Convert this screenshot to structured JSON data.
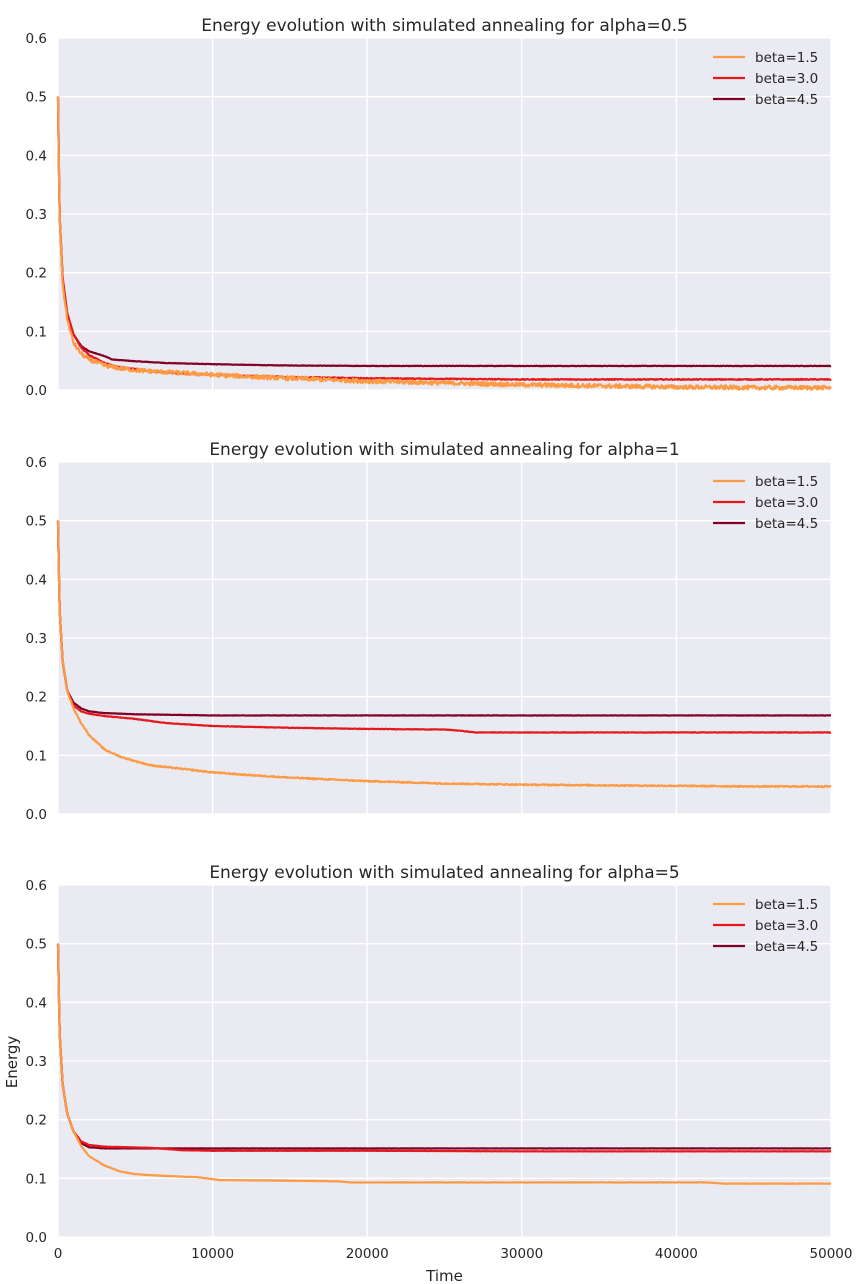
{
  "figure": {
    "xlabel": "Time",
    "ylabel": "Energy"
  },
  "chart_data": [
    {
      "type": "line",
      "title": "Energy evolution with simulated annealing for alpha=0.5",
      "xlabel": "",
      "ylabel": "",
      "xlim": [
        0,
        50000
      ],
      "ylim": [
        0.0,
        0.6
      ],
      "yticks": [
        "0.0",
        "0.1",
        "0.2",
        "0.3",
        "0.4",
        "0.5",
        "0.6"
      ],
      "xticks": [
        "0",
        "10000",
        "20000",
        "30000",
        "40000",
        "50000"
      ],
      "show_xtick_labels": false,
      "grid": true,
      "legend": "top-right",
      "series": [
        {
          "name": "beta=1.5",
          "color": "#fd9a44",
          "noise": 0.0035,
          "points": [
            [
              0,
              0.5
            ],
            [
              100,
              0.3
            ],
            [
              300,
              0.18
            ],
            [
              600,
              0.12
            ],
            [
              1000,
              0.08
            ],
            [
              1500,
              0.062
            ],
            [
              2000,
              0.052
            ],
            [
              3000,
              0.042
            ],
            [
              4000,
              0.037
            ],
            [
              5000,
              0.034
            ],
            [
              6000,
              0.032
            ],
            [
              8000,
              0.029
            ],
            [
              10000,
              0.026
            ],
            [
              13000,
              0.022
            ],
            [
              16000,
              0.019
            ],
            [
              20000,
              0.015
            ],
            [
              25000,
              0.012
            ],
            [
              30000,
              0.009
            ],
            [
              35000,
              0.007
            ],
            [
              40000,
              0.005
            ],
            [
              45000,
              0.004
            ],
            [
              50000,
              0.004
            ]
          ]
        },
        {
          "name": "beta=3.0",
          "color": "#e31a1c",
          "noise": 0.0008,
          "points": [
            [
              0,
              0.5
            ],
            [
              100,
              0.3
            ],
            [
              300,
              0.19
            ],
            [
              600,
              0.13
            ],
            [
              1000,
              0.095
            ],
            [
              1500,
              0.072
            ],
            [
              2000,
              0.06
            ],
            [
              3000,
              0.046
            ],
            [
              4000,
              0.039
            ],
            [
              6000,
              0.032
            ],
            [
              8000,
              0.028
            ],
            [
              10000,
              0.026
            ],
            [
              15000,
              0.022
            ],
            [
              20000,
              0.02
            ],
            [
              25000,
              0.019
            ],
            [
              30000,
              0.018
            ],
            [
              50000,
              0.018
            ]
          ]
        },
        {
          "name": "beta=4.5",
          "color": "#800026",
          "noise": 0.0004,
          "points": [
            [
              0,
              0.5
            ],
            [
              100,
              0.3
            ],
            [
              300,
              0.19
            ],
            [
              600,
              0.13
            ],
            [
              1000,
              0.095
            ],
            [
              1500,
              0.075
            ],
            [
              2000,
              0.066
            ],
            [
              3000,
              0.058
            ],
            [
              3500,
              0.052
            ],
            [
              5000,
              0.049
            ],
            [
              7000,
              0.046
            ],
            [
              10000,
              0.044
            ],
            [
              14000,
              0.042
            ],
            [
              20000,
              0.041
            ],
            [
              50000,
              0.041
            ]
          ]
        }
      ]
    },
    {
      "type": "line",
      "title": "Energy evolution with simulated annealing for alpha=1",
      "xlabel": "",
      "ylabel": "",
      "xlim": [
        0,
        50000
      ],
      "ylim": [
        0.0,
        0.6
      ],
      "yticks": [
        "0.0",
        "0.1",
        "0.2",
        "0.3",
        "0.4",
        "0.5",
        "0.6"
      ],
      "xticks": [
        "0",
        "10000",
        "20000",
        "30000",
        "40000",
        "50000"
      ],
      "show_xtick_labels": false,
      "grid": true,
      "legend": "top-right",
      "series": [
        {
          "name": "beta=1.5",
          "color": "#fd9a44",
          "noise": 0.001,
          "points": [
            [
              0,
              0.5
            ],
            [
              100,
              0.35
            ],
            [
              300,
              0.26
            ],
            [
              600,
              0.21
            ],
            [
              1000,
              0.18
            ],
            [
              1500,
              0.155
            ],
            [
              2000,
              0.135
            ],
            [
              3000,
              0.11
            ],
            [
              4000,
              0.098
            ],
            [
              5000,
              0.09
            ],
            [
              6000,
              0.083
            ],
            [
              8000,
              0.077
            ],
            [
              10000,
              0.071
            ],
            [
              12000,
              0.067
            ],
            [
              15000,
              0.062
            ],
            [
              20000,
              0.056
            ],
            [
              25000,
              0.052
            ],
            [
              30000,
              0.05
            ],
            [
              35000,
              0.049
            ],
            [
              40000,
              0.048
            ],
            [
              45000,
              0.047
            ],
            [
              50000,
              0.047
            ]
          ]
        },
        {
          "name": "beta=3.0",
          "color": "#e31a1c",
          "noise": 0.0004,
          "points": [
            [
              0,
              0.5
            ],
            [
              100,
              0.35
            ],
            [
              300,
              0.26
            ],
            [
              600,
              0.21
            ],
            [
              1000,
              0.185
            ],
            [
              1500,
              0.175
            ],
            [
              2000,
              0.171
            ],
            [
              3000,
              0.167
            ],
            [
              5000,
              0.162
            ],
            [
              7000,
              0.155
            ],
            [
              10000,
              0.15
            ],
            [
              15000,
              0.147
            ],
            [
              20000,
              0.145
            ],
            [
              25000,
              0.144
            ],
            [
              26000,
              0.142
            ],
            [
              27000,
              0.139
            ],
            [
              35000,
              0.139
            ],
            [
              50000,
              0.139
            ]
          ]
        },
        {
          "name": "beta=4.5",
          "color": "#800026",
          "noise": 0.0003,
          "points": [
            [
              0,
              0.5
            ],
            [
              100,
              0.35
            ],
            [
              300,
              0.26
            ],
            [
              600,
              0.21
            ],
            [
              1000,
              0.19
            ],
            [
              1500,
              0.18
            ],
            [
              2000,
              0.175
            ],
            [
              3000,
              0.172
            ],
            [
              5000,
              0.17
            ],
            [
              10000,
              0.168
            ],
            [
              20000,
              0.168
            ],
            [
              50000,
              0.168
            ]
          ]
        }
      ]
    },
    {
      "type": "line",
      "title": "Energy evolution with simulated annealing for alpha=5",
      "xlabel": "Time",
      "ylabel": "Energy",
      "xlim": [
        0,
        50000
      ],
      "ylim": [
        0.0,
        0.6
      ],
      "yticks": [
        "0.0",
        "0.1",
        "0.2",
        "0.3",
        "0.4",
        "0.5",
        "0.6"
      ],
      "xticks": [
        "0",
        "10000",
        "20000",
        "30000",
        "40000",
        "50000"
      ],
      "show_xtick_labels": true,
      "grid": true,
      "legend": "top-right",
      "series": [
        {
          "name": "beta=1.5",
          "color": "#fd9a44",
          "noise": 0.0003,
          "points": [
            [
              0,
              0.5
            ],
            [
              100,
              0.35
            ],
            [
              300,
              0.26
            ],
            [
              600,
              0.21
            ],
            [
              1000,
              0.18
            ],
            [
              1500,
              0.155
            ],
            [
              2000,
              0.138
            ],
            [
              3000,
              0.122
            ],
            [
              4000,
              0.112
            ],
            [
              5000,
              0.107
            ],
            [
              7000,
              0.104
            ],
            [
              9000,
              0.102
            ],
            [
              10500,
              0.097
            ],
            [
              15000,
              0.096
            ],
            [
              18000,
              0.095
            ],
            [
              19000,
              0.093
            ],
            [
              30000,
              0.093
            ],
            [
              42000,
              0.093
            ],
            [
              43000,
              0.091
            ],
            [
              50000,
              0.091
            ]
          ]
        },
        {
          "name": "beta=3.0",
          "color": "#e31a1c",
          "noise": 0.0002,
          "points": [
            [
              0,
              0.5
            ],
            [
              100,
              0.35
            ],
            [
              300,
              0.26
            ],
            [
              600,
              0.21
            ],
            [
              1000,
              0.18
            ],
            [
              1500,
              0.163
            ],
            [
              2000,
              0.157
            ],
            [
              3000,
              0.154
            ],
            [
              6000,
              0.152
            ],
            [
              8000,
              0.148
            ],
            [
              10000,
              0.147
            ],
            [
              20000,
              0.147
            ],
            [
              30000,
              0.146
            ],
            [
              50000,
              0.146
            ]
          ]
        },
        {
          "name": "beta=4.5",
          "color": "#800026",
          "noise": 0.0002,
          "points": [
            [
              0,
              0.5
            ],
            [
              100,
              0.35
            ],
            [
              300,
              0.26
            ],
            [
              600,
              0.21
            ],
            [
              1000,
              0.18
            ],
            [
              1500,
              0.16
            ],
            [
              2000,
              0.153
            ],
            [
              3000,
              0.151
            ],
            [
              5000,
              0.151
            ],
            [
              10000,
              0.151
            ],
            [
              20000,
              0.151
            ],
            [
              50000,
              0.151
            ]
          ]
        }
      ]
    }
  ]
}
